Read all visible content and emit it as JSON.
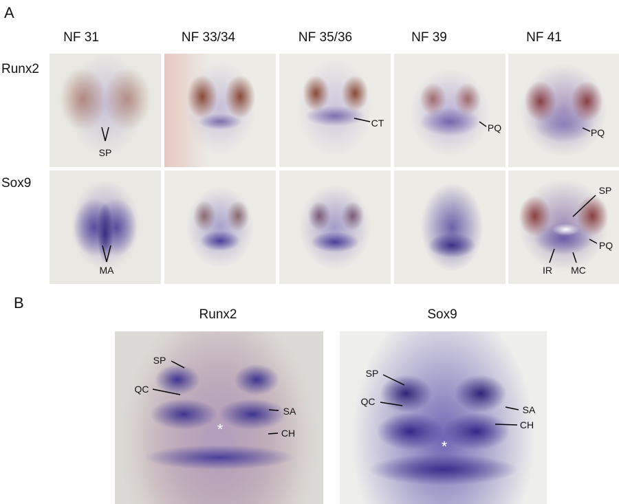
{
  "panels": {
    "a": "A",
    "b": "B"
  },
  "panel_a": {
    "columns": [
      "NF 31",
      "NF 33/34",
      "NF 35/36",
      "NF 39",
      "NF 41"
    ],
    "rows": [
      "Runx2",
      "Sox9"
    ],
    "annotations": {
      "r1c1_sp": "SP",
      "r1c3_ct": "CT",
      "r1c4_pq": "PQ",
      "r1c5_pq": "PQ",
      "r2c1_ma": "MA",
      "r2c5_sp": "SP",
      "r2c5_pq": "PQ",
      "r2c5_ir": "IR",
      "r2c5_mc": "MC"
    }
  },
  "panel_b": {
    "columns": [
      "Runx2",
      "Sox9"
    ],
    "runx2": {
      "sp": "SP",
      "qc": "QC",
      "sa": "SA",
      "ch": "CH",
      "asterisk": "*"
    },
    "sox9": {
      "sp": "SP",
      "qc": "QC",
      "sa": "SA",
      "ch": "CH",
      "asterisk": "*"
    }
  },
  "colors": {
    "stain_purple": "#4a3f9a",
    "pigment_brown": "#8a4a3a",
    "background": "#ecebe6"
  }
}
